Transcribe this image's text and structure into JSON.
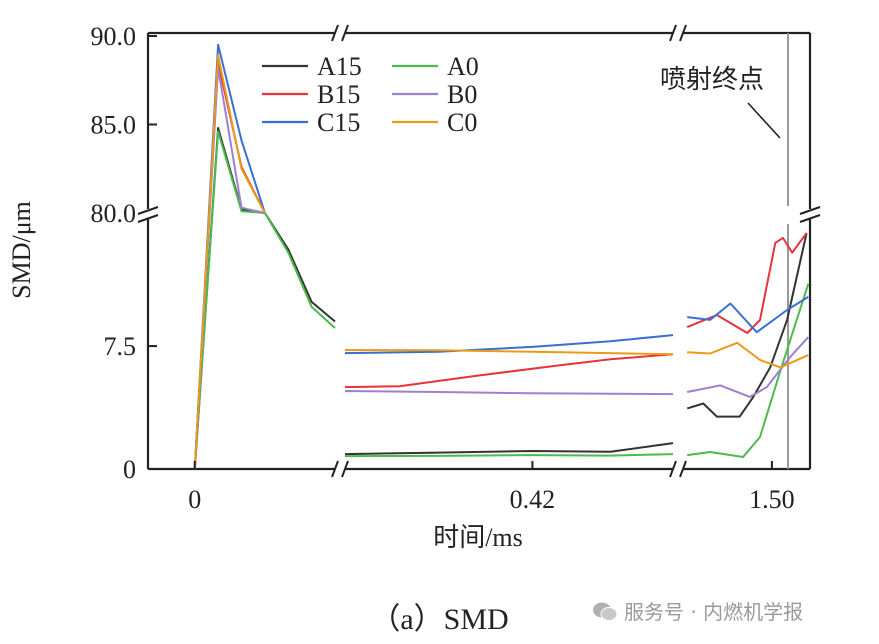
{
  "chart_data": {
    "type": "line",
    "title": "",
    "xlabel": "时间/ms",
    "ylabel": "SMD/μm",
    "x_segments": [
      [
        -0.02,
        0.06
      ],
      [
        0.18,
        0.6
      ],
      [
        1.395,
        1.545
      ]
    ],
    "y_segments": [
      [
        0,
        15.5
      ],
      [
        80,
        90
      ]
    ],
    "x_ticks": [
      {
        "value": 0,
        "label": "0"
      },
      {
        "value": 0.42,
        "label": "0.42"
      },
      {
        "value": 1.5,
        "label": "1.50"
      }
    ],
    "y_ticks": [
      {
        "value": 0,
        "label": "0"
      },
      {
        "value": 7.5,
        "label": "7.5"
      },
      {
        "value": 80,
        "label": "80.0"
      },
      {
        "value": 85,
        "label": "85.0"
      },
      {
        "value": 90,
        "label": "90.0"
      }
    ],
    "grid": false,
    "legend_position": "top-left",
    "annotation": {
      "text": "喷射终点",
      "x": 1.519
    },
    "series": [
      {
        "name": "A15",
        "color": "#333333",
        "points": [
          [
            0,
            0
          ],
          [
            0.01,
            84.8
          ],
          [
            0.02,
            80.2
          ],
          [
            0.03,
            80
          ],
          [
            0.04,
            13.4
          ],
          [
            0.05,
            10.2
          ],
          [
            0.06,
            9.0
          ],
          [
            0.18,
            0.91
          ],
          [
            0.3,
            1.0
          ],
          [
            0.42,
            1.1
          ],
          [
            0.52,
            1.05
          ],
          [
            0.6,
            1.58
          ],
          [
            1.4,
            3.7
          ],
          [
            1.419,
            4.0
          ],
          [
            1.435,
            3.2
          ],
          [
            1.462,
            3.2
          ],
          [
            1.478,
            4.4
          ],
          [
            1.498,
            6.2
          ],
          [
            1.518,
            9.1
          ],
          [
            1.541,
            14.4
          ]
        ]
      },
      {
        "name": "A0",
        "color": "#4cbb4c",
        "points": [
          [
            0,
            0
          ],
          [
            0.01,
            84.6
          ],
          [
            0.02,
            80.1
          ],
          [
            0.03,
            80
          ],
          [
            0.04,
            13.2
          ],
          [
            0.05,
            9.9
          ],
          [
            0.06,
            8.6
          ],
          [
            0.18,
            0.79
          ],
          [
            0.3,
            0.8
          ],
          [
            0.42,
            0.85
          ],
          [
            0.52,
            0.82
          ],
          [
            0.6,
            0.91
          ],
          [
            1.4,
            0.85
          ],
          [
            1.427,
            1.04
          ],
          [
            1.466,
            0.73
          ],
          [
            1.486,
            1.95
          ],
          [
            1.51,
            6.0
          ],
          [
            1.543,
            11.3
          ]
        ]
      },
      {
        "name": "B15",
        "color": "#e8333a",
        "points": [
          [
            0,
            0
          ],
          [
            0.01,
            88.5
          ],
          [
            0.02,
            82.6
          ],
          [
            0.03,
            80
          ],
          [
            0.18,
            5.0
          ],
          [
            0.25,
            5.05
          ],
          [
            0.35,
            5.7
          ],
          [
            0.45,
            6.3
          ],
          [
            0.52,
            6.7
          ],
          [
            0.6,
            7.0
          ],
          [
            1.4,
            8.66
          ],
          [
            1.435,
            9.4
          ],
          [
            1.471,
            8.3
          ],
          [
            1.486,
            9.1
          ],
          [
            1.504,
            13.8
          ],
          [
            1.513,
            14.1
          ],
          [
            1.524,
            13.2
          ],
          [
            1.541,
            14.4
          ]
        ]
      },
      {
        "name": "B0",
        "color": "#a07fd0",
        "points": [
          [
            0,
            0
          ],
          [
            0.01,
            88.2
          ],
          [
            0.02,
            80.3
          ],
          [
            0.03,
            80
          ],
          [
            0.18,
            4.76
          ],
          [
            0.3,
            4.7
          ],
          [
            0.42,
            4.62
          ],
          [
            0.6,
            4.57
          ],
          [
            1.4,
            4.7
          ],
          [
            1.439,
            5.1
          ],
          [
            1.474,
            4.4
          ],
          [
            1.494,
            5.0
          ],
          [
            1.521,
            6.8
          ],
          [
            1.543,
            8.05
          ]
        ]
      },
      {
        "name": "C15",
        "color": "#3a6fd0",
        "points": [
          [
            0,
            0
          ],
          [
            0.01,
            89.5
          ],
          [
            0.02,
            84.1
          ],
          [
            0.03,
            80
          ],
          [
            0.18,
            7.07
          ],
          [
            0.3,
            7.15
          ],
          [
            0.42,
            7.45
          ],
          [
            0.52,
            7.8
          ],
          [
            0.6,
            8.17
          ],
          [
            1.4,
            9.27
          ],
          [
            1.427,
            9.1
          ],
          [
            1.451,
            10.1
          ],
          [
            1.482,
            8.35
          ],
          [
            1.518,
            9.7
          ],
          [
            1.543,
            10.5
          ]
        ]
      },
      {
        "name": "C0",
        "color": "#e89a1a",
        "points": [
          [
            0,
            0
          ],
          [
            0.01,
            88.9
          ],
          [
            0.02,
            82.5
          ],
          [
            0.03,
            80
          ],
          [
            0.18,
            7.26
          ],
          [
            0.3,
            7.25
          ],
          [
            0.42,
            7.15
          ],
          [
            0.6,
            7.0
          ],
          [
            1.4,
            7.13
          ],
          [
            1.427,
            7.05
          ],
          [
            1.459,
            7.7
          ],
          [
            1.486,
            6.65
          ],
          [
            1.51,
            6.2
          ],
          [
            1.543,
            6.95
          ]
        ]
      }
    ]
  },
  "caption": "（a）SMD",
  "watermark": {
    "icon": "wechat-icon",
    "text": "服务号 · 内燃机学报"
  }
}
